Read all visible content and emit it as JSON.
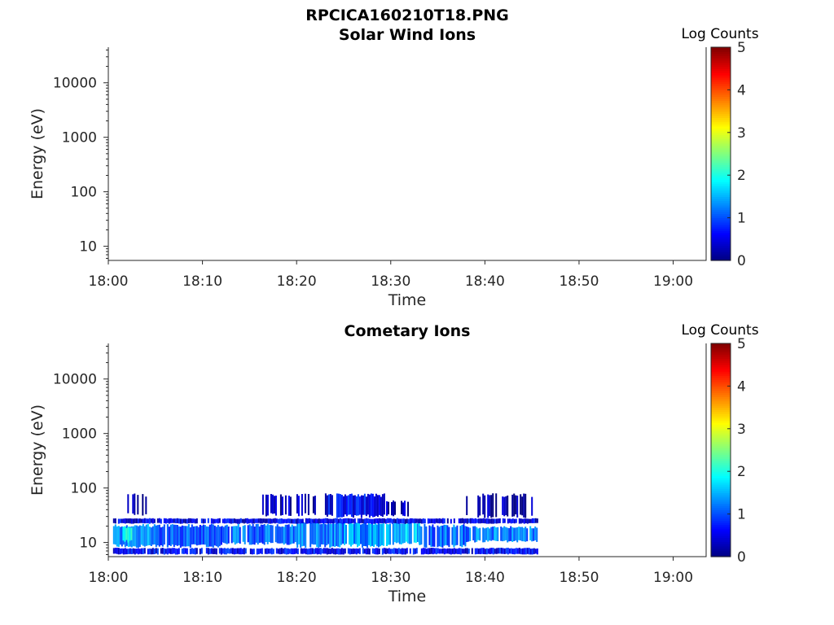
{
  "figure": {
    "title": "RPCICA160210T18.PNG"
  },
  "chart_data": [
    {
      "type": "heatmap",
      "title": "Solar Wind Ions",
      "xlabel": "Time",
      "ylabel": "Energy (eV)",
      "x_ticks": [
        "18:00",
        "18:10",
        "18:20",
        "18:30",
        "18:40",
        "18:50",
        "19:00"
      ],
      "x_range_minutes": [
        0,
        63.5
      ],
      "y_scale": "log",
      "y_range_eV": [
        5.5,
        45000
      ],
      "y_ticks": [
        {
          "value": 10,
          "label": "10"
        },
        {
          "value": 100,
          "label": "100"
        },
        {
          "value": 1000,
          "label": "1000"
        },
        {
          "value": 10000,
          "label": "10000"
        }
      ],
      "colorbar": {
        "label": "Log Counts",
        "ticks": [
          "0",
          "1",
          "2",
          "3",
          "4",
          "5"
        ],
        "range": [
          0,
          5
        ],
        "colormap": "jet"
      },
      "data": []
    },
    {
      "type": "heatmap",
      "title": "Cometary Ions",
      "xlabel": "Time",
      "ylabel": "Energy (eV)",
      "x_ticks": [
        "18:00",
        "18:10",
        "18:20",
        "18:30",
        "18:40",
        "18:50",
        "19:00"
      ],
      "x_range_minutes": [
        0,
        63.5
      ],
      "y_scale": "log",
      "y_range_eV": [
        5.5,
        45000
      ],
      "y_ticks": [
        {
          "value": 10,
          "label": "10"
        },
        {
          "value": 100,
          "label": "100"
        },
        {
          "value": 1000,
          "label": "1000"
        },
        {
          "value": 10000,
          "label": "10000"
        }
      ],
      "colorbar": {
        "label": "Log Counts",
        "ticks": [
          "0",
          "1",
          "2",
          "3",
          "4",
          "5"
        ],
        "range": [
          0,
          5
        ],
        "colormap": "jet"
      },
      "data_extent": {
        "time_minutes": [
          0.5,
          45.5
        ],
        "energy_eV": [
          6,
          80
        ]
      },
      "data": [
        {
          "t0": 0.5,
          "t1": 5,
          "e0": 8,
          "e1": 22,
          "log_counts": 1.3
        },
        {
          "t0": 1.5,
          "t1": 2.5,
          "e0": 10,
          "e1": 20,
          "log_counts": 2.0
        },
        {
          "t0": 5,
          "t1": 12,
          "e0": 8,
          "e1": 22,
          "log_counts": 1.0
        },
        {
          "t0": 12,
          "t1": 20,
          "e0": 9,
          "e1": 22,
          "log_counts": 1.1
        },
        {
          "t0": 20,
          "t1": 25,
          "e0": 8,
          "e1": 25,
          "log_counts": 1.2
        },
        {
          "t0": 25,
          "t1": 30,
          "e0": 8,
          "e1": 25,
          "log_counts": 1.3
        },
        {
          "t0": 30,
          "t1": 33,
          "e0": 9,
          "e1": 24,
          "log_counts": 1.6
        },
        {
          "t0": 33,
          "t1": 38,
          "e0": 8,
          "e1": 22,
          "log_counts": 1.1
        },
        {
          "t0": 38,
          "t1": 45.5,
          "e0": 10,
          "e1": 20,
          "log_counts": 1.2
        },
        {
          "t0": 0.5,
          "t1": 45.5,
          "e0": 6,
          "e1": 8,
          "log_counts": 0.6
        },
        {
          "t0": 0.5,
          "t1": 45.5,
          "e0": 22,
          "e1": 28,
          "log_counts": 0.5
        },
        {
          "t0": 23,
          "t1": 29.5,
          "e0": 28,
          "e1": 80,
          "log_counts": 0.6
        },
        {
          "t0": 16,
          "t1": 22,
          "e0": 30,
          "e1": 80,
          "log_counts": 0.3
        },
        {
          "t0": 29.5,
          "t1": 32,
          "e0": 30,
          "e1": 60,
          "log_counts": 0.2
        },
        {
          "t0": 1.5,
          "t1": 4,
          "e0": 30,
          "e1": 80,
          "log_counts": 0.1
        },
        {
          "t0": 38,
          "t1": 45,
          "e0": 28,
          "e1": 80,
          "log_counts": 0.1
        }
      ]
    }
  ]
}
